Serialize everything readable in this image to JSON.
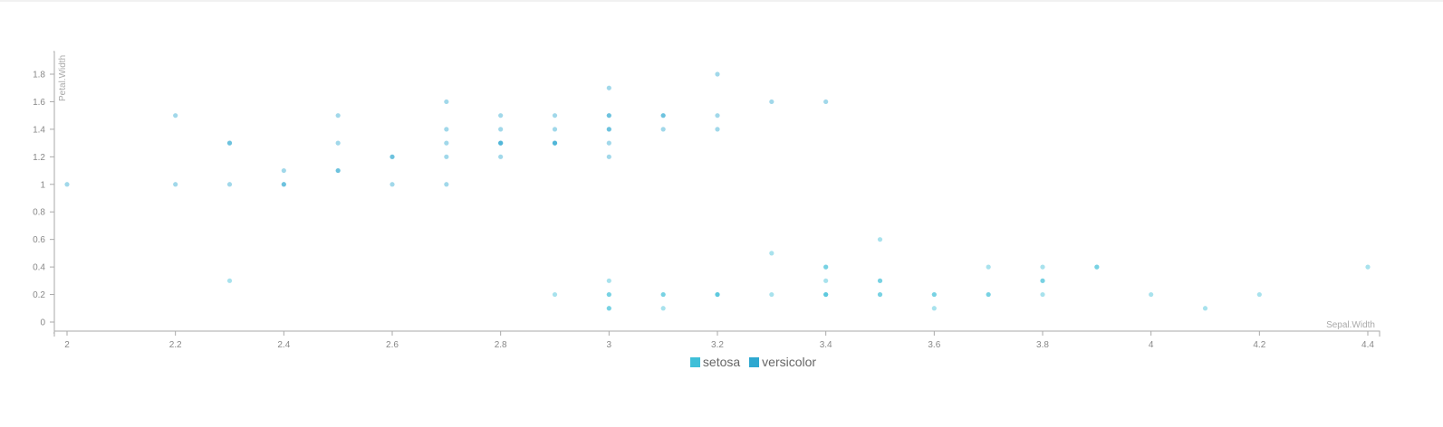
{
  "chart_data": {
    "type": "scatter",
    "xlabel": "Sepal.Width",
    "ylabel": "Petal.Width",
    "xlim": [
      2,
      4.4
    ],
    "ylim": [
      0,
      1.8
    ],
    "xticks": [
      "2",
      "2.2",
      "2.4",
      "2.6",
      "2.8",
      "3",
      "3.2",
      "3.4",
      "3.6",
      "3.8",
      "4",
      "4.2",
      "4.4"
    ],
    "yticks": [
      "0",
      "0.2",
      "0.4",
      "0.6",
      "0.8",
      "1",
      "1.2",
      "1.4",
      "1.6",
      "1.8"
    ],
    "grid": false,
    "legend_position": "bottom",
    "series": [
      {
        "name": "setosa",
        "color": "#3fbfd8",
        "points": [
          [
            2.3,
            0.3
          ],
          [
            2.9,
            0.2
          ],
          [
            3.0,
            0.1
          ],
          [
            3.0,
            0.1
          ],
          [
            3.0,
            0.2
          ],
          [
            3.0,
            0.2
          ],
          [
            3.0,
            0.3
          ],
          [
            3.1,
            0.1
          ],
          [
            3.1,
            0.2
          ],
          [
            3.1,
            0.2
          ],
          [
            3.2,
            0.2
          ],
          [
            3.2,
            0.2
          ],
          [
            3.2,
            0.2
          ],
          [
            3.3,
            0.2
          ],
          [
            3.3,
            0.5
          ],
          [
            3.4,
            0.2
          ],
          [
            3.4,
            0.2
          ],
          [
            3.4,
            0.2
          ],
          [
            3.4,
            0.3
          ],
          [
            3.4,
            0.4
          ],
          [
            3.4,
            0.4
          ],
          [
            3.5,
            0.2
          ],
          [
            3.5,
            0.2
          ],
          [
            3.5,
            0.3
          ],
          [
            3.5,
            0.3
          ],
          [
            3.5,
            0.6
          ],
          [
            3.6,
            0.1
          ],
          [
            3.6,
            0.2
          ],
          [
            3.6,
            0.2
          ],
          [
            3.7,
            0.2
          ],
          [
            3.7,
            0.2
          ],
          [
            3.7,
            0.4
          ],
          [
            3.8,
            0.2
          ],
          [
            3.8,
            0.3
          ],
          [
            3.8,
            0.3
          ],
          [
            3.8,
            0.4
          ],
          [
            3.9,
            0.4
          ],
          [
            3.9,
            0.4
          ],
          [
            4.0,
            0.2
          ],
          [
            4.1,
            0.1
          ],
          [
            4.2,
            0.2
          ],
          [
            4.4,
            0.4
          ]
        ]
      },
      {
        "name": "versicolor",
        "color": "#2ea8d0",
        "points": [
          [
            2.0,
            1.0
          ],
          [
            2.2,
            1.0
          ],
          [
            2.2,
            1.5
          ],
          [
            2.3,
            1.0
          ],
          [
            2.3,
            1.3
          ],
          [
            2.3,
            1.3
          ],
          [
            2.4,
            1.0
          ],
          [
            2.4,
            1.0
          ],
          [
            2.4,
            1.1
          ],
          [
            2.5,
            1.1
          ],
          [
            2.5,
            1.1
          ],
          [
            2.5,
            1.3
          ],
          [
            2.5,
            1.5
          ],
          [
            2.6,
            1.0
          ],
          [
            2.6,
            1.2
          ],
          [
            2.6,
            1.2
          ],
          [
            2.7,
            1.0
          ],
          [
            2.7,
            1.2
          ],
          [
            2.7,
            1.3
          ],
          [
            2.7,
            1.4
          ],
          [
            2.7,
            1.6
          ],
          [
            2.8,
            1.2
          ],
          [
            2.8,
            1.3
          ],
          [
            2.8,
            1.3
          ],
          [
            2.8,
            1.3
          ],
          [
            2.8,
            1.4
          ],
          [
            2.8,
            1.5
          ],
          [
            2.9,
            1.3
          ],
          [
            2.9,
            1.3
          ],
          [
            2.9,
            1.3
          ],
          [
            2.9,
            1.4
          ],
          [
            2.9,
            1.5
          ],
          [
            3.0,
            1.2
          ],
          [
            3.0,
            1.3
          ],
          [
            3.0,
            1.4
          ],
          [
            3.0,
            1.4
          ],
          [
            3.0,
            1.5
          ],
          [
            3.0,
            1.5
          ],
          [
            3.0,
            1.7
          ],
          [
            3.1,
            1.4
          ],
          [
            3.1,
            1.5
          ],
          [
            3.1,
            1.5
          ],
          [
            3.2,
            1.4
          ],
          [
            3.2,
            1.5
          ],
          [
            3.2,
            1.8
          ],
          [
            3.3,
            1.6
          ],
          [
            3.4,
            1.6
          ]
        ]
      }
    ]
  }
}
